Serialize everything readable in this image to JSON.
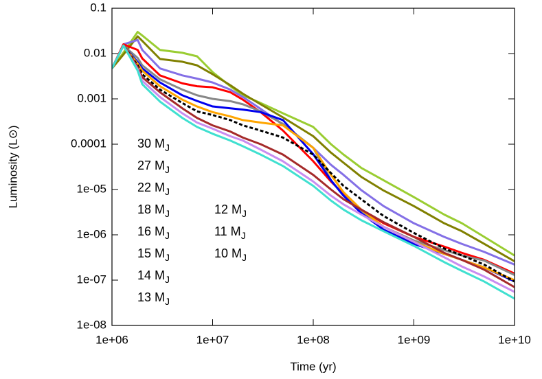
{
  "chart_data": {
    "type": "line",
    "x_label": "Time (yr)",
    "y_label": "Luminosity (L⊙)",
    "x_scale": "log",
    "y_scale": "log",
    "xlim": [
      1000000,
      10000000000
    ],
    "ylim": [
      1e-08,
      0.1
    ],
    "xticks": [
      {
        "value": 1000000,
        "label": "1e+06"
      },
      {
        "value": 10000000,
        "label": "1e+07"
      },
      {
        "value": 100000000,
        "label": "1e+08"
      },
      {
        "value": 1000000000,
        "label": "1e+09"
      },
      {
        "value": 10000000000,
        "label": "1e+10"
      }
    ],
    "yticks": [
      {
        "value": 1e-08,
        "label": "1e-08"
      },
      {
        "value": 1e-07,
        "label": "1e-07"
      },
      {
        "value": 1e-06,
        "label": "1e-06"
      },
      {
        "value": 1e-05,
        "label": "1e-05"
      },
      0.0001,
      0.001,
      0.01,
      0.1
    ],
    "x": [
      1000000,
      1300000,
      1800000,
      2000000,
      3000000,
      5000000,
      7000000,
      10000000,
      15000000,
      20000000,
      30000000,
      50000000,
      100000000,
      150000000,
      200000000,
      300000000,
      500000000,
      1000000000,
      2000000000,
      3000000000,
      5000000000,
      10000000000
    ],
    "series": [
      {
        "name": "30 MJ",
        "color": "#9acd32",
        "values": [
          0.0047,
          0.0105,
          0.03,
          0.025,
          0.012,
          0.0104,
          0.0087,
          0.0039,
          0.0019,
          0.0012,
          0.00081,
          0.00048,
          0.00024,
          0.0001,
          5.9e-05,
          3e-05,
          1.6e-05,
          6.8e-06,
          2.8e-06,
          1.8e-06,
          9e-07,
          3.5e-07
        ]
      },
      {
        "name": "27 MJ",
        "color": "#808000",
        "values": [
          0.0047,
          0.0095,
          0.024,
          0.019,
          0.0076,
          0.0066,
          0.0055,
          0.0035,
          0.002,
          0.0013,
          0.00076,
          0.00039,
          0.00015,
          6.5e-05,
          3.9e-05,
          1.9e-05,
          9.5e-06,
          4.3e-06,
          1.8e-06,
          1.2e-06,
          6.3e-07,
          2.6e-07
        ]
      },
      {
        "name": "22 MJ",
        "color": "#8470e6",
        "values": [
          0.0047,
          0.016,
          0.02,
          0.012,
          0.0047,
          0.0033,
          0.0028,
          0.0023,
          0.0016,
          0.0011,
          0.0006,
          0.00027,
          8.3e-05,
          3.5e-05,
          2.1e-05,
          9.7e-06,
          4.3e-06,
          1.8e-06,
          9e-07,
          6.3e-07,
          4.2e-07,
          2.2e-07
        ]
      },
      {
        "name": "18 MJ",
        "color": "#ff0000",
        "values": [
          0.0047,
          0.016,
          0.012,
          0.0078,
          0.0033,
          0.0022,
          0.0019,
          0.0018,
          0.0014,
          0.00096,
          0.00051,
          0.0002,
          4.2e-05,
          1.5e-05,
          8e-06,
          3.6e-06,
          1.8e-06,
          9e-07,
          5.5e-07,
          4e-07,
          2.8e-07,
          1.4e-07
        ]
      },
      {
        "name": "16 MJ",
        "color": "#888888",
        "values": [
          0.0047,
          0.015,
          0.008,
          0.0055,
          0.0027,
          0.0016,
          0.0012,
          0.001,
          0.00089,
          0.00076,
          0.00053,
          0.00028,
          8.3e-05,
          1.6e-05,
          7.3e-06,
          3.3e-06,
          1.5e-06,
          7.5e-07,
          4.6e-07,
          3.5e-07,
          2.7e-07,
          1.3e-07
        ]
      },
      {
        "name": "15 MJ",
        "color": "#0000ee",
        "values": [
          0.0047,
          0.015,
          0.0065,
          0.0047,
          0.0023,
          0.0012,
          0.0009,
          0.00068,
          0.00062,
          0.00058,
          0.00051,
          0.00034,
          6e-05,
          1.6e-05,
          7.3e-06,
          3e-06,
          1.3e-06,
          6.3e-07,
          3.8e-07,
          2.8e-07,
          1.9e-07,
          9.4e-08
        ]
      },
      {
        "name": "14 MJ",
        "color": "#ffa500",
        "values": [
          0.0047,
          0.015,
          0.006,
          0.0042,
          0.0019,
          0.00096,
          0.00068,
          0.00051,
          0.00041,
          0.00034,
          0.0003,
          0.00026,
          8.3e-05,
          2.1e-05,
          8.7e-06,
          3.6e-06,
          1.5e-06,
          7e-07,
          3.8e-07,
          2.8e-07,
          1.9e-07,
          1e-07
        ]
      },
      {
        "name": "13 MJ",
        "color": "#000000",
        "dashed": true,
        "values": [
          0.0047,
          0.015,
          0.0055,
          0.0035,
          0.0016,
          0.00081,
          0.00053,
          0.00044,
          0.00034,
          0.00026,
          0.0002,
          0.00014,
          5.9e-05,
          2.3e-05,
          1.2e-05,
          6.1e-06,
          2.6e-06,
          1.1e-06,
          5e-07,
          3.5e-07,
          2.2e-07,
          9.3e-08
        ]
      },
      {
        "name": "12 MJ",
        "color": "#a52a2a",
        "values": [
          0.0047,
          0.015,
          0.005,
          0.003,
          0.0014,
          0.00062,
          0.00038,
          0.00026,
          0.00019,
          0.00014,
          0.0001,
          5.9e-05,
          2.1e-05,
          1e-05,
          6.1e-06,
          3.6e-06,
          1.9e-06,
          9e-07,
          4e-07,
          2.8e-07,
          1.7e-07,
          7e-08
        ]
      },
      {
        "name": "11 MJ",
        "color": "#c88cf0",
        "values": [
          0.0047,
          0.015,
          0.0045,
          0.0025,
          0.0011,
          0.00048,
          0.0003,
          0.00022,
          0.00015,
          0.00012,
          7.6e-05,
          4.2e-05,
          1.5e-05,
          7.3e-06,
          4.7e-06,
          2.8e-06,
          1.5e-06,
          7e-07,
          3.2e-07,
          2e-07,
          1.2e-07,
          5.5e-08
        ]
      },
      {
        "name": "10 MJ",
        "color": "#40e0d0",
        "values": [
          0.0047,
          0.015,
          0.0042,
          0.0021,
          0.00087,
          0.00038,
          0.00024,
          0.00017,
          0.00012,
          9e-05,
          5.9e-05,
          3.3e-05,
          1.2e-05,
          5.7e-06,
          3.6e-06,
          2.1e-06,
          1.2e-06,
          5.7e-07,
          2.5e-07,
          1.6e-07,
          9.3e-08,
          3.9e-08
        ]
      }
    ]
  }
}
